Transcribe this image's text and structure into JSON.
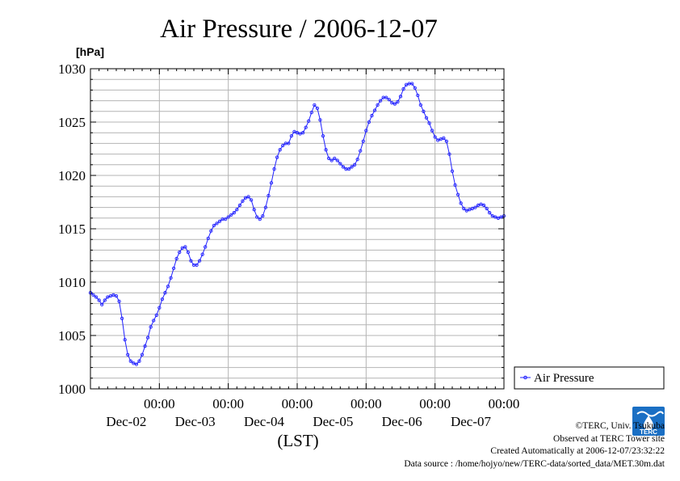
{
  "chart_data": {
    "type": "line",
    "title": "Air Pressure / 2006-12-07",
    "ylabel": "[hPa]",
    "xlabel": "(LST)",
    "ylim": [
      1000,
      1030
    ],
    "y_ticks": [
      1000,
      1005,
      1010,
      1015,
      1020,
      1025,
      1030
    ],
    "y_tick_labels": [
      "1000",
      "1005",
      "1010",
      "1015",
      "1020",
      "1025",
      "1030"
    ],
    "x_range_hours": [
      0,
      144
    ],
    "x_ticks": [
      {
        "hour": 24,
        "time": "00:00",
        "date": "Dec-02"
      },
      {
        "hour": 48,
        "time": "00:00",
        "date": "Dec-03"
      },
      {
        "hour": 72,
        "time": "00:00",
        "date": "Dec-04"
      },
      {
        "hour": 96,
        "time": "00:00",
        "date": "Dec-05"
      },
      {
        "hour": 120,
        "time": "00:00",
        "date": "Dec-06"
      },
      {
        "hour": 144,
        "time": "00:00",
        "date": "Dec-07"
      }
    ],
    "grid": true,
    "legend_position": "right",
    "series": [
      {
        "name": "Air Pressure",
        "color": "#2020ff",
        "points": [
          [
            0,
            1009.0
          ],
          [
            1,
            1008.8
          ],
          [
            2,
            1008.6
          ],
          [
            3,
            1008.3
          ],
          [
            4,
            1007.9
          ],
          [
            5,
            1008.3
          ],
          [
            6,
            1008.6
          ],
          [
            7,
            1008.7
          ],
          [
            8,
            1008.8
          ],
          [
            9,
            1008.7
          ],
          [
            10,
            1008.2
          ],
          [
            11,
            1006.6
          ],
          [
            12,
            1004.6
          ],
          [
            13,
            1003.2
          ],
          [
            14,
            1002.6
          ],
          [
            15,
            1002.4
          ],
          [
            16,
            1002.3
          ],
          [
            17,
            1002.6
          ],
          [
            18,
            1003.2
          ],
          [
            19,
            1004.0
          ],
          [
            20,
            1004.8
          ],
          [
            21,
            1005.8
          ],
          [
            22,
            1006.4
          ],
          [
            23,
            1006.9
          ],
          [
            24,
            1007.6
          ],
          [
            25,
            1008.4
          ],
          [
            26,
            1009.0
          ],
          [
            27,
            1009.6
          ],
          [
            28,
            1010.4
          ],
          [
            29,
            1011.3
          ],
          [
            30,
            1012.2
          ],
          [
            31,
            1012.8
          ],
          [
            32,
            1013.2
          ],
          [
            33,
            1013.3
          ],
          [
            34,
            1012.8
          ],
          [
            35,
            1012.0
          ],
          [
            36,
            1011.6
          ],
          [
            37,
            1011.6
          ],
          [
            38,
            1012.0
          ],
          [
            39,
            1012.6
          ],
          [
            40,
            1013.3
          ],
          [
            41,
            1014.1
          ],
          [
            42,
            1014.8
          ],
          [
            43,
            1015.3
          ],
          [
            44,
            1015.5
          ],
          [
            45,
            1015.7
          ],
          [
            46,
            1015.9
          ],
          [
            47,
            1015.9
          ],
          [
            48,
            1016.1
          ],
          [
            49,
            1016.3
          ],
          [
            50,
            1016.5
          ],
          [
            51,
            1016.8
          ],
          [
            52,
            1017.2
          ],
          [
            53,
            1017.6
          ],
          [
            54,
            1017.9
          ],
          [
            55,
            1018.0
          ],
          [
            56,
            1017.7
          ],
          [
            57,
            1016.8
          ],
          [
            58,
            1016.1
          ],
          [
            59,
            1015.9
          ],
          [
            60,
            1016.2
          ],
          [
            61,
            1017.0
          ],
          [
            62,
            1018.1
          ],
          [
            63,
            1019.3
          ],
          [
            64,
            1020.6
          ],
          [
            65,
            1021.7
          ],
          [
            66,
            1022.4
          ],
          [
            67,
            1022.8
          ],
          [
            68,
            1023.0
          ],
          [
            69,
            1023.0
          ],
          [
            70,
            1023.7
          ],
          [
            71,
            1024.1
          ],
          [
            72,
            1024.0
          ],
          [
            73,
            1023.9
          ],
          [
            74,
            1024.0
          ],
          [
            75,
            1024.5
          ],
          [
            76,
            1025.1
          ],
          [
            77,
            1025.9
          ],
          [
            78,
            1026.6
          ],
          [
            79,
            1026.3
          ],
          [
            80,
            1025.2
          ],
          [
            81,
            1023.7
          ],
          [
            82,
            1022.4
          ],
          [
            83,
            1021.6
          ],
          [
            84,
            1021.4
          ],
          [
            85,
            1021.6
          ],
          [
            86,
            1021.4
          ],
          [
            87,
            1021.1
          ],
          [
            88,
            1020.8
          ],
          [
            89,
            1020.6
          ],
          [
            90,
            1020.6
          ],
          [
            91,
            1020.8
          ],
          [
            92,
            1021.0
          ],
          [
            93,
            1021.5
          ],
          [
            94,
            1022.3
          ],
          [
            95,
            1023.2
          ],
          [
            96,
            1024.2
          ],
          [
            97,
            1025.0
          ],
          [
            98,
            1025.6
          ],
          [
            99,
            1026.1
          ],
          [
            100,
            1026.6
          ],
          [
            101,
            1027.0
          ],
          [
            102,
            1027.3
          ],
          [
            103,
            1027.3
          ],
          [
            104,
            1027.1
          ],
          [
            105,
            1026.8
          ],
          [
            106,
            1026.7
          ],
          [
            107,
            1026.9
          ],
          [
            108,
            1027.4
          ],
          [
            109,
            1028.1
          ],
          [
            110,
            1028.5
          ],
          [
            111,
            1028.6
          ],
          [
            112,
            1028.6
          ],
          [
            113,
            1028.2
          ],
          [
            114,
            1027.5
          ],
          [
            115,
            1026.6
          ],
          [
            116,
            1026.0
          ],
          [
            117,
            1025.4
          ],
          [
            118,
            1024.9
          ],
          [
            119,
            1024.2
          ],
          [
            120,
            1023.6
          ],
          [
            121,
            1023.3
          ],
          [
            122,
            1023.4
          ],
          [
            123,
            1023.5
          ],
          [
            124,
            1023.2
          ],
          [
            125,
            1022.0
          ],
          [
            126,
            1020.4
          ],
          [
            127,
            1019.1
          ],
          [
            128,
            1018.2
          ],
          [
            129,
            1017.4
          ],
          [
            130,
            1016.9
          ],
          [
            131,
            1016.7
          ],
          [
            132,
            1016.8
          ],
          [
            133,
            1016.9
          ],
          [
            134,
            1017.0
          ],
          [
            135,
            1017.2
          ],
          [
            136,
            1017.3
          ],
          [
            137,
            1017.2
          ],
          [
            138,
            1016.9
          ],
          [
            139,
            1016.5
          ],
          [
            140,
            1016.2
          ],
          [
            141,
            1016.1
          ],
          [
            142,
            1016.0
          ],
          [
            143,
            1016.1
          ],
          [
            144,
            1016.2
          ]
        ]
      }
    ]
  },
  "credits": {
    "copyright": "©TERC, Univ. Tsukuba",
    "observed": "Observed at TERC Tower site",
    "created": "Created Automatically at 2006-12-07/23:32:22",
    "source": "Data source : /home/hojyo/new/TERC-data/sorted_data/MET.30m.dat"
  },
  "logo": {
    "name": "terc-logo-icon",
    "text": "TERC",
    "color": "#1a6fc4"
  }
}
